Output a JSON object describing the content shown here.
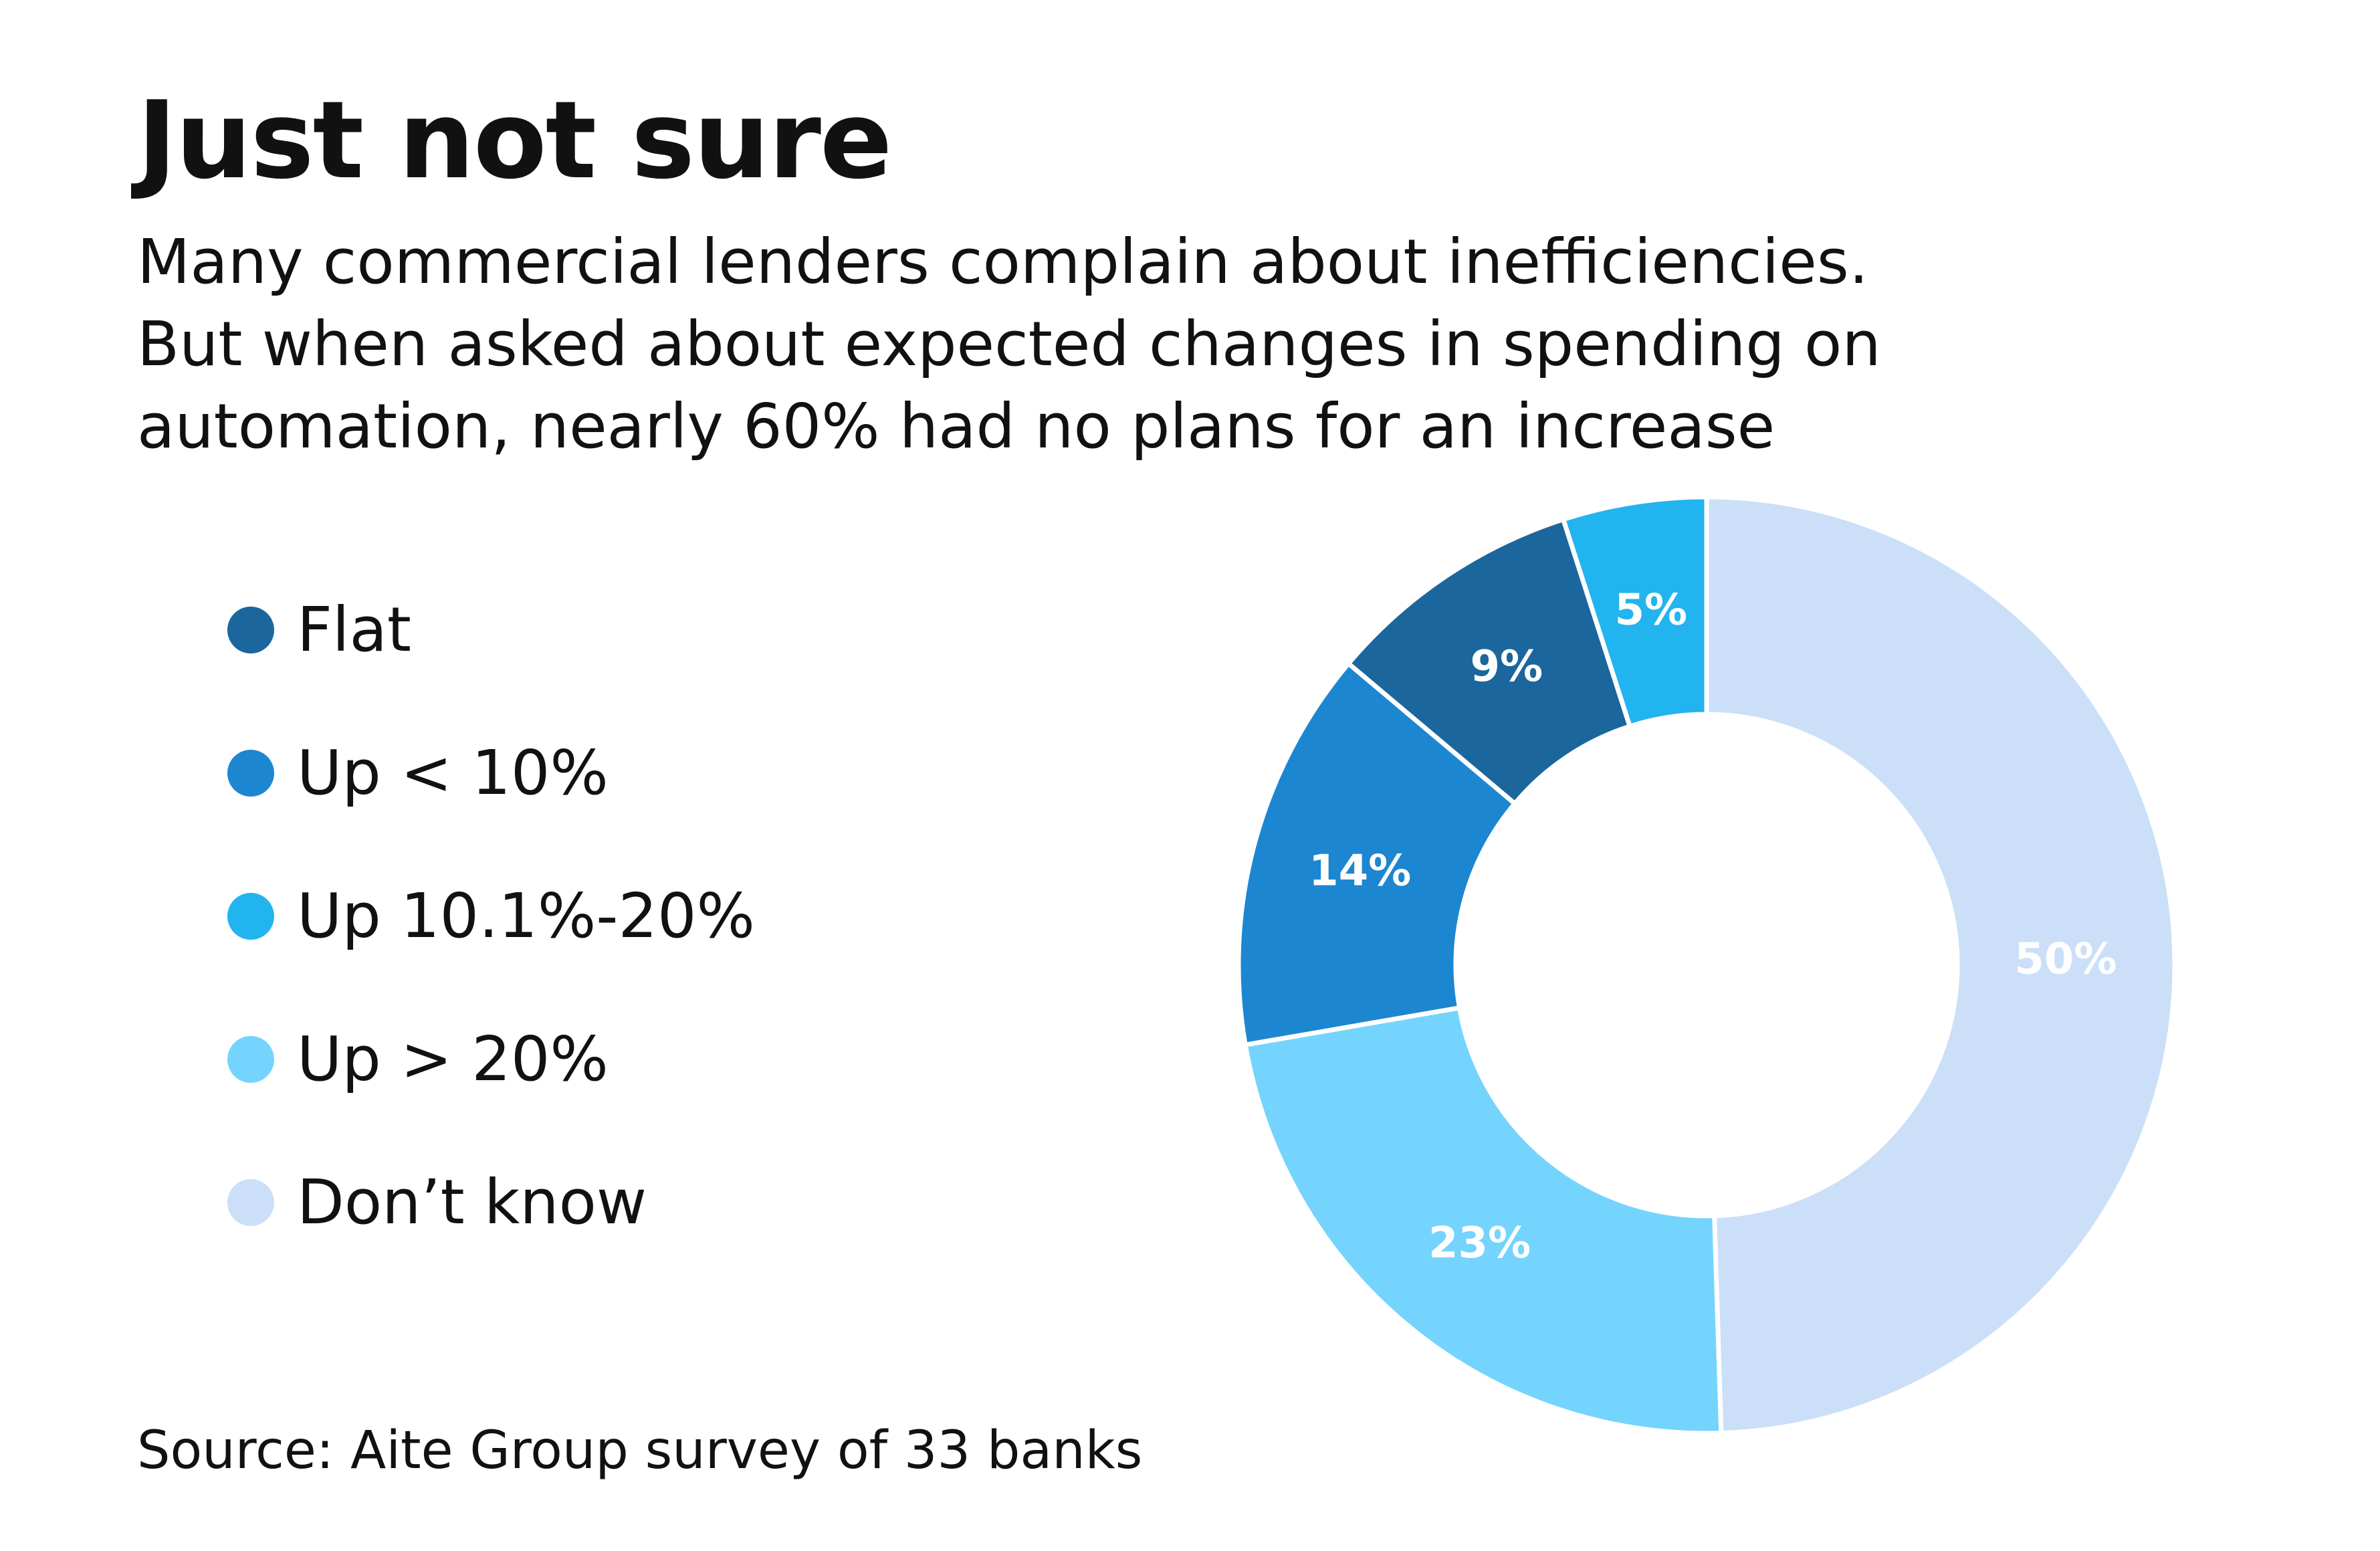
{
  "chart_data": {
    "type": "pie",
    "title": "Just not sure",
    "subtitle": [
      "Many commercial lenders complain about inefficiencies.",
      "But when asked about expected changes in spending on",
      "automation, nearly 60% had no plans for an increase"
    ],
    "categories": [
      "Flat",
      "Up < 10%",
      "Up 10.1%-20%",
      "Up > 20%",
      "Don’t know"
    ],
    "values": [
      9,
      14,
      5,
      23,
      50
    ],
    "value_labels": [
      "9%",
      "14%",
      "5%",
      "23%",
      "50%"
    ],
    "colors": [
      "#1b669d",
      "#1d86d1",
      "#22b4ee",
      "#74d4fd",
      "#cbdff8"
    ],
    "legend_position": "left",
    "donut": true,
    "slice_order_clockwise_from_top": [
      "Don’t know",
      "Up > 20%",
      "Up < 10%",
      "Flat",
      "Up 10.1%-20%"
    ],
    "source": "Source: Aite Group survey of 33 banks"
  }
}
